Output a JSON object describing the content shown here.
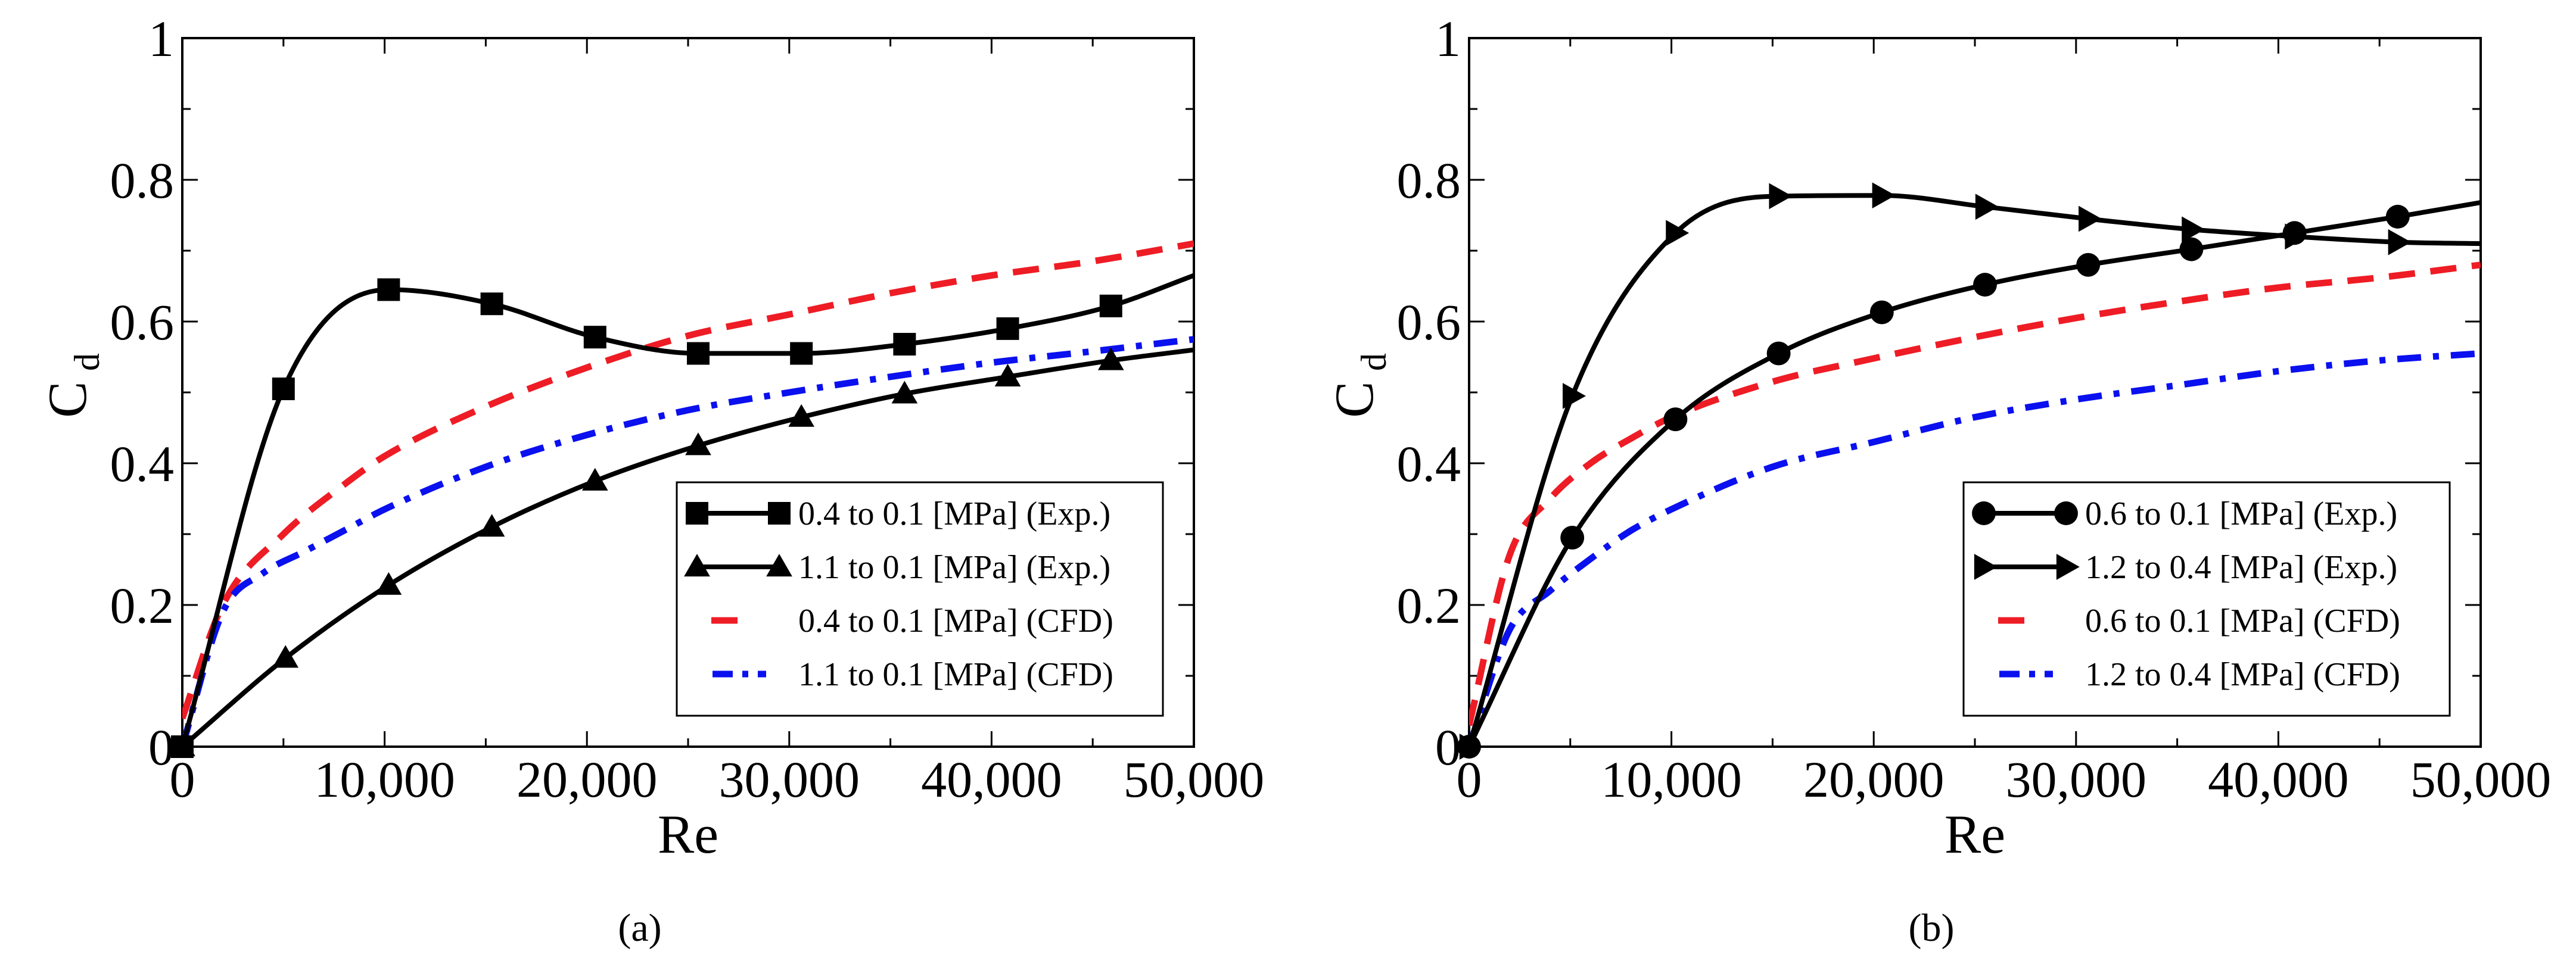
{
  "chart_data": [
    {
      "type": "line",
      "panel_label": "(a)",
      "xlabel": "Re",
      "ylabel": "C",
      "ylabel_sub": "d",
      "xlim": [
        0,
        50000
      ],
      "ylim": [
        0,
        1
      ],
      "x_ticks": [
        0,
        10000,
        20000,
        30000,
        40000,
        50000
      ],
      "x_tick_labels": [
        "0",
        "10,000",
        "20,000",
        "30,000",
        "40,000",
        "50,000"
      ],
      "y_ticks": [
        0,
        0.2,
        0.4,
        0.6,
        0.8,
        1
      ],
      "y_tick_labels": [
        "0",
        "0.2",
        "0.4",
        "0.6",
        "0.8",
        "1"
      ],
      "legend_position": "bottom-right",
      "series": [
        {
          "name": "0.4 to 0.1 [MPa] (Exp.)",
          "style": "solid",
          "color": "#000000",
          "marker": "square",
          "x": [
            0,
            5000,
            10200,
            15300,
            20400,
            25500,
            30600,
            35700,
            40800,
            45900,
            50000
          ],
          "y": [
            0,
            0.505,
            0.645,
            0.625,
            0.578,
            0.555,
            0.555,
            0.568,
            0.59,
            0.622,
            0.665
          ],
          "marker_count": 10
        },
        {
          "name": "1.1 to 0.1 [MPa] (Exp.)",
          "style": "solid",
          "color": "#000000",
          "marker": "triangle",
          "x": [
            0,
            5100,
            10200,
            15300,
            20400,
            25500,
            30600,
            35700,
            40800,
            45900,
            50000
          ],
          "y": [
            0,
            0.125,
            0.228,
            0.31,
            0.375,
            0.425,
            0.465,
            0.498,
            0.522,
            0.545,
            0.56
          ],
          "marker_count": 10
        },
        {
          "name": "0.4 to 0.1 [MPa] (CFD)",
          "style": "dashed",
          "color": "#ee1c25",
          "marker": "none",
          "x": [
            0,
            2000,
            5000,
            8000,
            10000,
            15000,
            20000,
            25000,
            30000,
            35000,
            40000,
            45000,
            50000
          ],
          "y": [
            0.04,
            0.2,
            0.3,
            0.37,
            0.41,
            0.48,
            0.535,
            0.58,
            0.61,
            0.64,
            0.665,
            0.685,
            0.71
          ]
        },
        {
          "name": "1.1 to 0.1 [MPa] (CFD)",
          "style": "dashdot",
          "color": "#0a10ee",
          "marker": "none",
          "x": [
            0,
            2000,
            4000,
            6000,
            8000,
            10000,
            15000,
            20000,
            25000,
            30000,
            35000,
            40000,
            45000,
            50000
          ],
          "y": [
            0,
            0.19,
            0.245,
            0.275,
            0.305,
            0.335,
            0.395,
            0.44,
            0.475,
            0.5,
            0.522,
            0.542,
            0.558,
            0.575
          ]
        }
      ]
    },
    {
      "type": "line",
      "panel_label": "(b)",
      "xlabel": "Re",
      "ylabel": "C",
      "ylabel_sub": "d",
      "xlim": [
        0,
        50000
      ],
      "ylim": [
        0,
        1
      ],
      "x_ticks": [
        0,
        10000,
        20000,
        30000,
        40000,
        50000
      ],
      "x_tick_labels": [
        "0",
        "10,000",
        "20,000",
        "30,000",
        "40,000",
        "50,000"
      ],
      "y_ticks": [
        0,
        0.2,
        0.4,
        0.6,
        0.8,
        1
      ],
      "y_tick_labels": [
        "0",
        "0.2",
        "0.4",
        "0.6",
        "0.8",
        "1"
      ],
      "legend_position": "bottom-right",
      "series": [
        {
          "name": "0.6 to 0.1 [MPa] (Exp.)",
          "style": "solid",
          "color": "#000000",
          "marker": "circle",
          "x": [
            0,
            5100,
            10200,
            15300,
            20400,
            25500,
            30600,
            35700,
            40800,
            45900,
            50000
          ],
          "y": [
            0,
            0.295,
            0.462,
            0.555,
            0.613,
            0.652,
            0.68,
            0.702,
            0.725,
            0.748,
            0.768
          ],
          "marker_count": 10
        },
        {
          "name": "1.2 to 0.4 [MPa] (Exp.)",
          "style": "solid",
          "color": "#000000",
          "marker": "triangle-right",
          "x": [
            0,
            5100,
            10200,
            15300,
            20400,
            25500,
            30600,
            35700,
            40800,
            45900,
            50000
          ],
          "y": [
            0,
            0.495,
            0.725,
            0.777,
            0.778,
            0.762,
            0.745,
            0.73,
            0.72,
            0.712,
            0.71
          ],
          "marker_count": 10
        },
        {
          "name": "0.6 to 0.1 [MPa] (CFD)",
          "style": "dashed",
          "color": "#ee1c25",
          "marker": "none",
          "x": [
            0,
            2000,
            4000,
            6000,
            8000,
            10000,
            15000,
            20000,
            25000,
            30000,
            35000,
            40000,
            45000,
            50000
          ],
          "y": [
            0.03,
            0.27,
            0.35,
            0.4,
            0.435,
            0.465,
            0.515,
            0.548,
            0.578,
            0.605,
            0.628,
            0.648,
            0.662,
            0.68
          ]
        },
        {
          "name": "1.2 to 0.4 [MPa] (CFD)",
          "style": "dashdot",
          "color": "#0a10ee",
          "marker": "none",
          "x": [
            0,
            2000,
            4000,
            6000,
            8000,
            10000,
            15000,
            20000,
            25000,
            30000,
            35000,
            40000,
            45000,
            50000
          ],
          "y": [
            0,
            0.165,
            0.22,
            0.265,
            0.305,
            0.335,
            0.395,
            0.43,
            0.465,
            0.49,
            0.51,
            0.53,
            0.545,
            0.555
          ]
        }
      ]
    }
  ]
}
